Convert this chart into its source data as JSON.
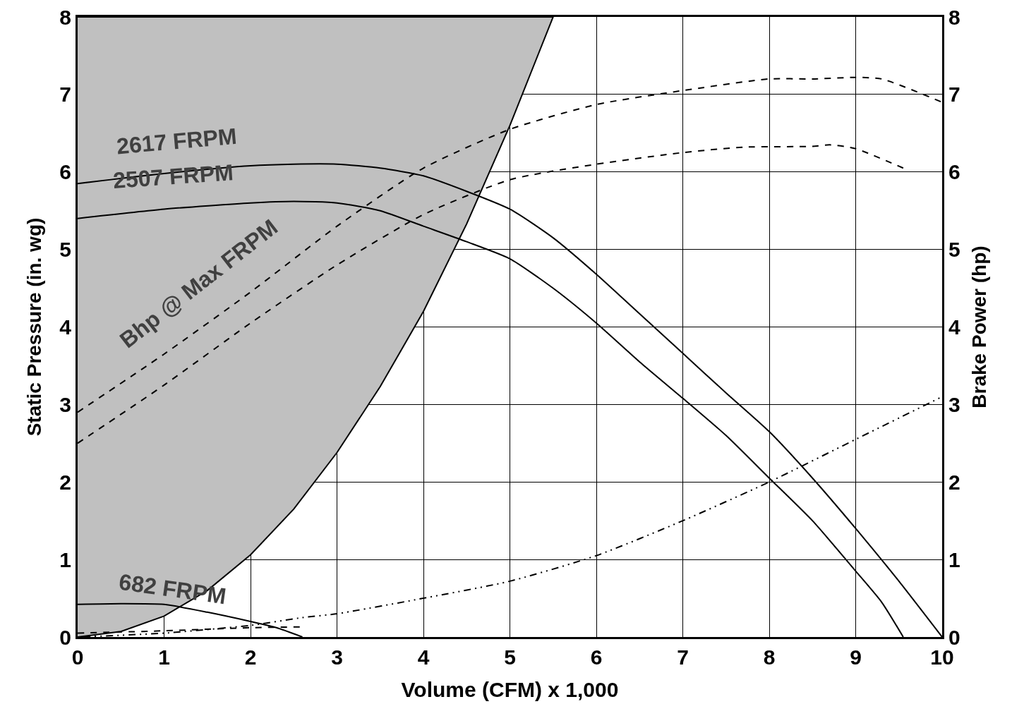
{
  "chart_data": {
    "type": "line",
    "xlabel": "Volume (CFM) x 1,000",
    "ylabel": "Static Pressure (in. wg)",
    "y2label": "Brake Power (hp)",
    "xlim": [
      0,
      10
    ],
    "xticks": [
      0,
      1,
      2,
      3,
      4,
      5,
      6,
      7,
      8,
      9,
      10
    ],
    "ylim": [
      0,
      8
    ],
    "yticks": [
      0,
      1,
      2,
      3,
      4,
      5,
      6,
      7,
      8
    ],
    "y2lim": [
      0,
      8
    ],
    "y2ticks": [
      0,
      1,
      2,
      3,
      4,
      5,
      6,
      7,
      8
    ],
    "grid": true,
    "marker": "none",
    "series": [
      {
        "type": "area",
        "color": "#c0c0c0",
        "x": [
          0,
          0.5,
          1,
          1.5,
          2,
          2.5,
          3,
          3.5,
          4,
          4.5,
          5,
          5.5,
          0
        ],
        "values": [
          0,
          0.07,
          0.27,
          0.6,
          1.06,
          1.65,
          2.38,
          3.23,
          4.2,
          5.33,
          6.6,
          8,
          8
        ]
      },
      {
        "color": "#000000",
        "line_style": "solid",
        "x": [
          0,
          1,
          2,
          2.5,
          3,
          3.5,
          4,
          4.5,
          5,
          5.5,
          6,
          6.5,
          7,
          7.5,
          8,
          8.5,
          9,
          9.5,
          10
        ],
        "values": [
          5.85,
          5.98,
          6.08,
          6.1,
          6.1,
          6.05,
          5.95,
          5.75,
          5.52,
          5.15,
          4.68,
          4.17,
          3.66,
          3.15,
          2.65,
          2.05,
          1.4,
          0.72,
          0
        ]
      },
      {
        "color": "#000000",
        "line_style": "solid",
        "x": [
          0,
          1,
          2,
          2.5,
          3,
          3.5,
          4,
          4.5,
          5,
          5.5,
          6,
          6.5,
          7,
          7.5,
          8,
          8.5,
          9,
          9.3,
          9.55
        ],
        "values": [
          5.4,
          5.52,
          5.6,
          5.62,
          5.6,
          5.5,
          5.3,
          5.1,
          4.88,
          4.5,
          4.05,
          3.55,
          3.08,
          2.6,
          2.05,
          1.5,
          0.85,
          0.45,
          0
        ]
      },
      {
        "color": "#000000",
        "line_style": "solid",
        "x": [
          0,
          0.5,
          1,
          1.5,
          2,
          2.3,
          2.6
        ],
        "values": [
          0.42,
          0.43,
          0.42,
          0.32,
          0.2,
          0.12,
          0
        ]
      },
      {
        "color": "#000000",
        "line_style": "dashed",
        "axis": "y2",
        "x": [
          0,
          1,
          2,
          3,
          4,
          5,
          6,
          7,
          8,
          8.5,
          9,
          9.3,
          10
        ],
        "values": [
          2.9,
          3.65,
          4.45,
          5.3,
          6.05,
          6.55,
          6.87,
          7.05,
          7.2,
          7.2,
          7.22,
          7.2,
          6.9
        ]
      },
      {
        "color": "#000000",
        "line_style": "dashed",
        "axis": "y2",
        "x": [
          0,
          1,
          2,
          3,
          4,
          5,
          6,
          7,
          7.7,
          8.5,
          8.7,
          9,
          9.55
        ],
        "values": [
          2.5,
          3.25,
          4.05,
          4.8,
          5.45,
          5.9,
          6.1,
          6.25,
          6.32,
          6.33,
          6.35,
          6.3,
          6.05
        ]
      },
      {
        "color": "#000000",
        "line_style": "dashed",
        "axis": "y2",
        "x": [
          0,
          1,
          2,
          2.6
        ],
        "values": [
          0.05,
          0.08,
          0.12,
          0.13
        ]
      },
      {
        "color": "#000000",
        "line_style": "dashdot",
        "x": [
          0,
          1,
          2,
          2.6,
          3,
          4,
          5,
          6,
          7,
          8,
          9,
          10
        ],
        "values": [
          0,
          0.05,
          0.15,
          0.25,
          0.3,
          0.5,
          0.72,
          1.05,
          1.5,
          2.0,
          2.55,
          3.1
        ]
      }
    ],
    "annotations": [
      "2617 FRPM",
      "2507 FRPM",
      "Bhp @ Max FRPM",
      "682 FRPM"
    ]
  }
}
